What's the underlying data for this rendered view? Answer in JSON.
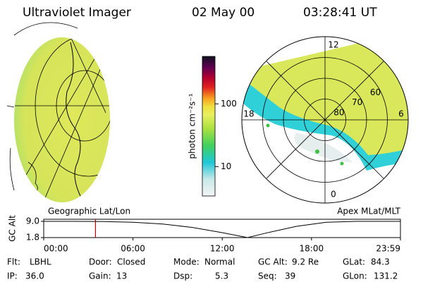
{
  "header": {
    "title": "Ultraviolet Imager",
    "date": "02 May 00",
    "time": "03:28:41 UT"
  },
  "geo_plot": {
    "label": "Geographic Lat/Lon"
  },
  "colorbar": {
    "label": "photon cm⁻²s⁻¹",
    "log": true,
    "lim": [
      3.4,
      570
    ],
    "ticks": [
      10,
      100
    ]
  },
  "polar_plot": {
    "label": "Apex MLat/MLT",
    "rlim": [
      90,
      50
    ],
    "lat_rings": [
      80,
      70,
      60
    ],
    "mlt_labels": [
      {
        "value": 12,
        "label": "12"
      },
      {
        "value": 18,
        "label": "18"
      },
      {
        "value": 6,
        "label": "6"
      },
      {
        "value": 0,
        "label": "0"
      }
    ]
  },
  "altitude_plot": {
    "ylabel": "GC Alt",
    "ylim": [
      1.8,
      9.0
    ],
    "yticks": [
      {
        "value": 9.0,
        "label": "9.0"
      },
      {
        "value": 1.8,
        "label": "1.8"
      }
    ],
    "xlim": [
      0,
      23.98
    ],
    "xticks": [
      {
        "value": 0,
        "label": "00:00"
      },
      {
        "value": 6,
        "label": "06:00"
      },
      {
        "value": 12,
        "label": "12:00"
      },
      {
        "value": 18,
        "label": "18:00"
      },
      {
        "value": 23.98,
        "label": "23:59"
      }
    ],
    "x": [
      0,
      2,
      4,
      6,
      8,
      10,
      12,
      13.7,
      15,
      17,
      19,
      21,
      23.98
    ],
    "values": [
      9.0,
      9.0,
      8.9,
      8.6,
      7.8,
      6.3,
      4.0,
      1.8,
      3.9,
      6.8,
      8.6,
      9.0,
      9.0
    ],
    "current_hour": 3.48,
    "current_color": "#d00000"
  },
  "status": {
    "rows": [
      [
        {
          "label": "Flt:",
          "value": "LBHL"
        },
        {
          "label": "Door:",
          "value": "Closed"
        },
        {
          "label": "Mode:",
          "value": "Normal"
        },
        {
          "label": "GC Alt:",
          "value": "9.2 Re"
        },
        {
          "label": "GLat:",
          "value": "84.3"
        }
      ],
      [
        {
          "label": "IP:",
          "value": "36.0"
        },
        {
          "label": "Gain:",
          "value": "13"
        },
        {
          "label": "Dsp:",
          "value": "5.3"
        },
        {
          "label": "Seq:",
          "value": "39"
        },
        {
          "label": "GLon:",
          "value": "131.2"
        }
      ]
    ]
  }
}
